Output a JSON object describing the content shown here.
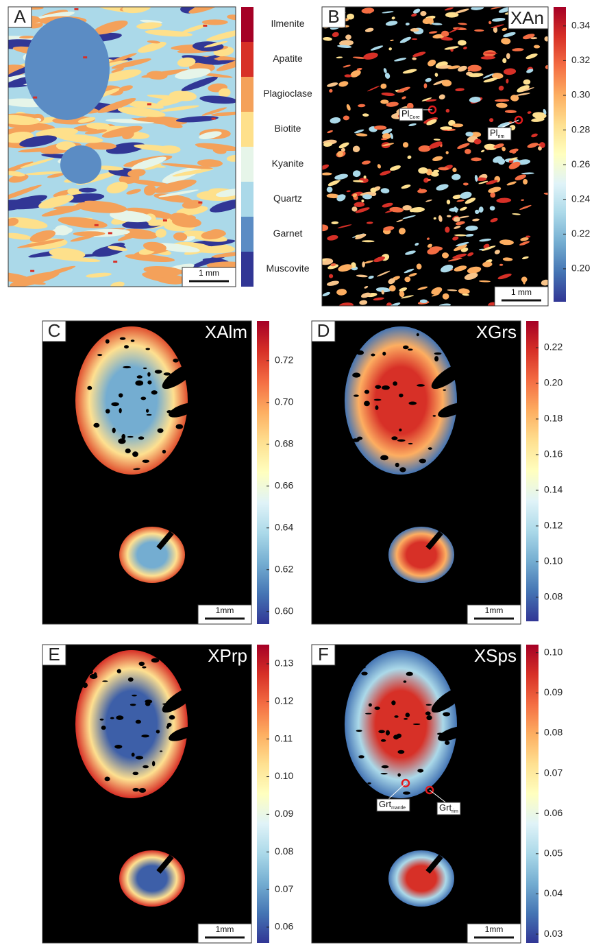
{
  "panels": [
    {
      "label": "A",
      "scale_bar": "1 mm",
      "legend": [
        {
          "name": "Ilmenite",
          "color": "#a50026"
        },
        {
          "name": "Apatite",
          "color": "#d73027"
        },
        {
          "name": "Plagioclase",
          "color": "#f4a15a"
        },
        {
          "name": "Biotite",
          "color": "#fee08b"
        },
        {
          "name": "Kyanite",
          "color": "#e6f5e9"
        },
        {
          "name": "Quartz",
          "color": "#abd9e9"
        },
        {
          "name": "Garnet",
          "color": "#5b8cc4"
        },
        {
          "name": "Muscovite",
          "color": "#313695"
        }
      ]
    },
    {
      "label": "B",
      "title": "XAn",
      "scale_bar": "1 mm",
      "colorbar": {
        "range": [
          0.181,
          0.351
        ],
        "ticks": [
          {
            "value": 0.2,
            "label": "0.20"
          },
          0.22,
          0.24,
          0.26,
          0.28,
          {
            "value": 0.3,
            "label": "0.30"
          },
          0.32,
          0.34
        ]
      },
      "annotations": [
        {
          "text": "Pl",
          "sub": "Core"
        },
        {
          "text": "Pl",
          "sub": "rim"
        }
      ]
    },
    {
      "label": "C",
      "title": "XAlm",
      "scale_bar": "1mm",
      "colorbar": {
        "range": [
          0.594,
          0.739
        ],
        "ticks": [
          {
            "value": 0.6,
            "label": "0.60"
          },
          0.62,
          0.64,
          0.66,
          0.68,
          {
            "value": 0.7,
            "label": "0.70"
          },
          0.72
        ]
      }
    },
    {
      "label": "D",
      "title": "XGrs",
      "scale_bar": "1mm",
      "colorbar": {
        "range": [
          0.0665,
          0.235
        ],
        "ticks": [
          0.08,
          {
            "value": 0.1,
            "label": "0.10"
          },
          0.12,
          0.14,
          0.16,
          0.18,
          {
            "value": 0.2,
            "label": "0.20"
          },
          0.22
        ]
      }
    },
    {
      "label": "E",
      "title": "XPrp",
      "scale_bar": "1mm",
      "colorbar": {
        "range": [
          0.0558,
          0.1351
        ],
        "ticks": [
          0.06,
          0.07,
          0.08,
          0.09,
          {
            "value": 0.1,
            "label": "0.10"
          },
          0.11,
          0.12,
          0.13
        ]
      }
    },
    {
      "label": "F",
      "title": "XSps",
      "scale_bar": "1mm",
      "colorbar": {
        "range": [
          0.0278,
          0.102
        ],
        "ticks": [
          0.03,
          0.04,
          0.05,
          0.06,
          0.07,
          0.08,
          0.09,
          {
            "value": 0.1,
            "label": "0.10"
          }
        ]
      },
      "annotations": [
        {
          "text": "Grt",
          "sub": "mantle"
        },
        {
          "text": "Grt",
          "sub": "rim"
        }
      ]
    }
  ]
}
